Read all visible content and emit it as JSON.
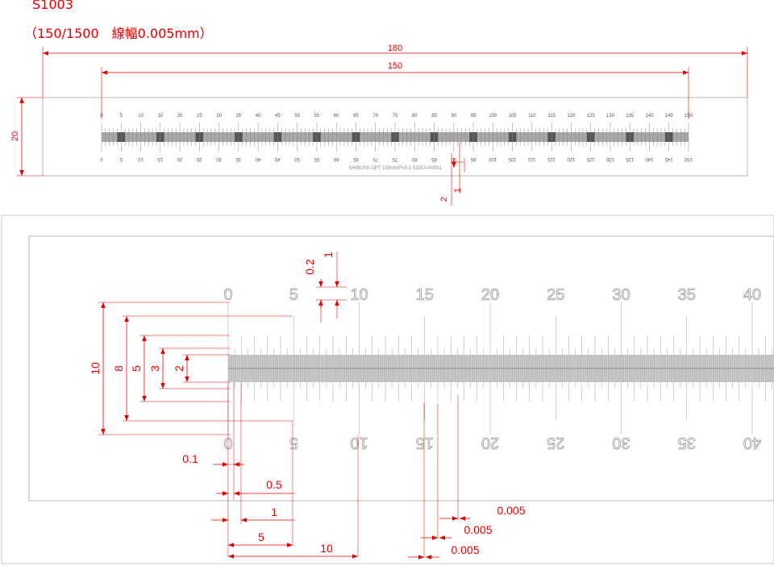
{
  "header": {
    "part_number": "S1003",
    "subtitle": "（150/1500　線幅0.005mm）"
  },
  "overview": {
    "dim_overall_length": "180",
    "dim_scale_length": "150",
    "dim_height": "20",
    "dim_offset_2": "2",
    "dim_offset_1": "1",
    "scale_labels": [
      "0",
      "5",
      "10",
      "15",
      "20",
      "25",
      "30",
      "35",
      "40",
      "45",
      "50",
      "55",
      "60",
      "65",
      "70",
      "75",
      "80",
      "85",
      "90",
      "95",
      "100",
      "105",
      "110",
      "115",
      "120",
      "125",
      "130",
      "135",
      "140",
      "145",
      "150"
    ],
    "marking_text": "SHIBUYA-OPT 150mmP=0.1 S1003-00001"
  },
  "detail": {
    "labels_top": [
      "0",
      "5",
      "10",
      "15",
      "20",
      "25",
      "30",
      "35",
      "40"
    ],
    "labels_bottom": [
      "0",
      "5",
      "10",
      "15",
      "20",
      "25",
      "30",
      "35",
      "40"
    ],
    "dim_text_02": "0.2",
    "dim_text_1_top": "1",
    "tick_heights": [
      "10",
      "8",
      "5",
      "3",
      "2"
    ],
    "spacing_01": "0.1",
    "spacing_05": "0.5",
    "spacing_1": "1",
    "spacing_5": "5",
    "spacing_10": "10",
    "line_width_a": "0.005",
    "line_width_b": "0.005",
    "line_width_c": "0.005"
  }
}
